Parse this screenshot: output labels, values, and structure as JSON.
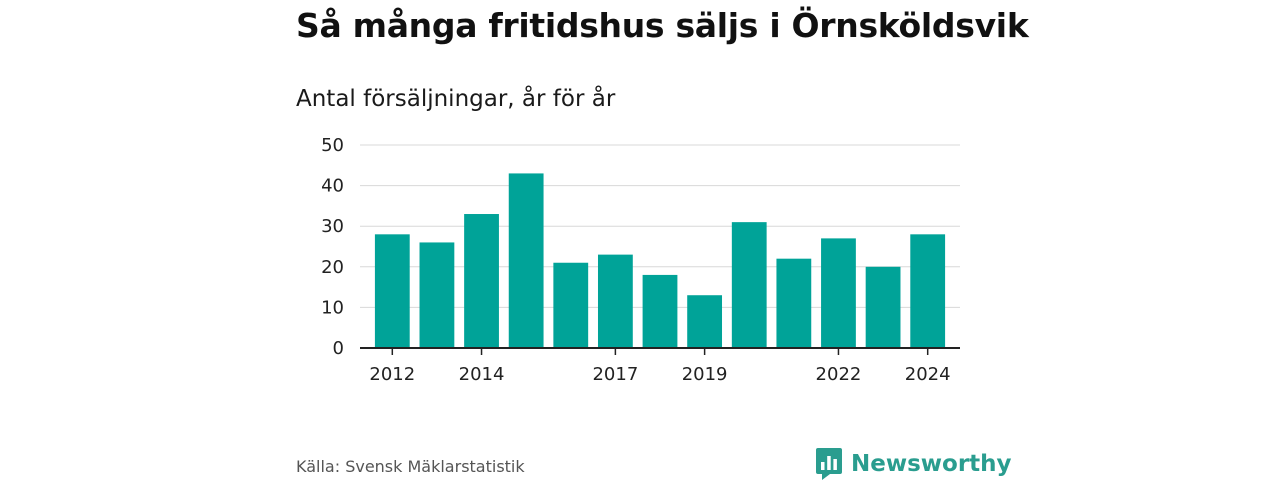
{
  "title": "Så många fritidshus säljs i Örnsköldsvik",
  "subtitle": "Antal försäljningar, år för år",
  "source": "Källa: Svensk Mäklarstatistik",
  "brand": {
    "name": "Newsworthy",
    "color": "#2a9d8f"
  },
  "colors": {
    "bar": "#00a398",
    "grid": "#d8d8d8",
    "axis": "#222222"
  },
  "chart_data": {
    "type": "bar",
    "x": [
      2012,
      2013,
      2014,
      2015,
      2016,
      2017,
      2018,
      2019,
      2020,
      2021,
      2022,
      2023,
      2024
    ],
    "values": [
      28,
      26,
      33,
      43,
      21,
      23,
      18,
      13,
      31,
      22,
      27,
      20,
      28
    ],
    "xtick_labels": [
      "2012",
      "2014",
      "2017",
      "2019",
      "2022",
      "2024"
    ],
    "ylim": [
      0,
      50
    ],
    "yticks": [
      0,
      10,
      20,
      30,
      40,
      50
    ],
    "grid": true,
    "xlabel": "",
    "ylabel": ""
  }
}
